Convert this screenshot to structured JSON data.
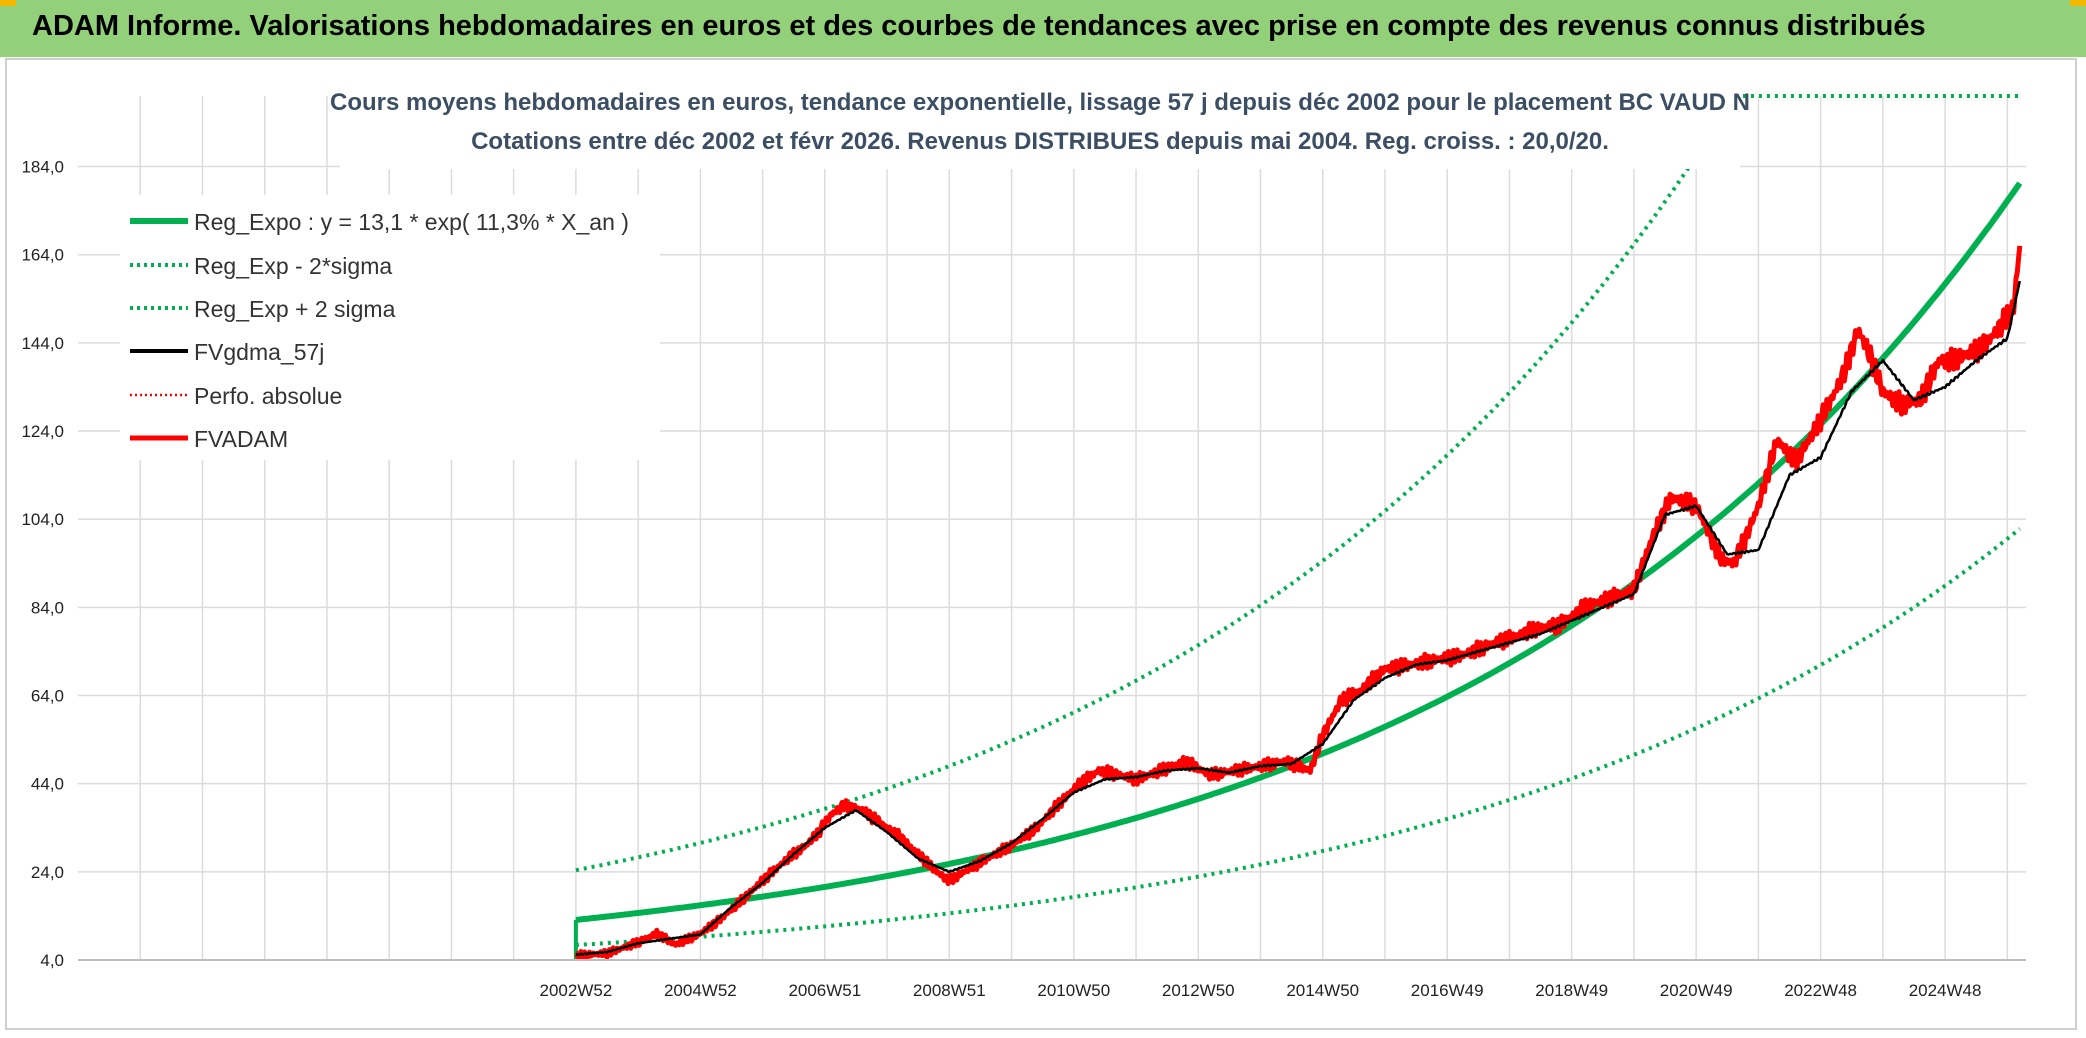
{
  "page": {
    "banner_title": "ADAM Informe. Valorisations hebdomadaires en euros et des courbes de tendances avec prise en compte des revenus connus distribués"
  },
  "colors": {
    "banner_bg": "#92d07a",
    "trend_green": "#00b050",
    "fv_black": "#000000",
    "fv_red": "#ff0000",
    "title_text": "#3b4e63",
    "grid": "#dcdcdc"
  },
  "chart_data": {
    "type": "line",
    "title": [
      "Cours moyens hebdomadaires en euros, tendance exponentielle, lissage 57 j depuis déc 2002 pour le placement BC VAUD N",
      "Cotations entre déc 2002 et févr 2026. Revenus DISTRIBUES depuis mai 2004. Reg. croiss. : 20,0/20."
    ],
    "x_unit": "year",
    "xlim": [
      1995.0,
      2026.3
    ],
    "ylim": [
      4.0,
      200.0
    ],
    "y_ticks": [
      4,
      24,
      44,
      64,
      84,
      104,
      124,
      144,
      164,
      184
    ],
    "y_tick_labels": [
      "4,0",
      "24,0",
      "44,0",
      "64,0",
      "84,0",
      "104,0",
      "124,0",
      "144,0",
      "164,0",
      "184,0"
    ],
    "x_ticks": [
      {
        "x": 2003.0,
        "label": "2002W52"
      },
      {
        "x": 2005.0,
        "label": "2004W52"
      },
      {
        "x": 2007.0,
        "label": "2006W51"
      },
      {
        "x": 2009.0,
        "label": "2008W51"
      },
      {
        "x": 2011.0,
        "label": "2010W50"
      },
      {
        "x": 2013.0,
        "label": "2012W50"
      },
      {
        "x": 2015.0,
        "label": "2014W50"
      },
      {
        "x": 2017.0,
        "label": "2016W49"
      },
      {
        "x": 2019.0,
        "label": "2018W49"
      },
      {
        "x": 2021.0,
        "label": "2020W49"
      },
      {
        "x": 2023.0,
        "label": "2022W48"
      },
      {
        "x": 2025.0,
        "label": "2024W48"
      }
    ],
    "legend": [
      {
        "name": "Reg_Expo : y = 13,1 * exp( 11,3% *  X_an )",
        "style": "solid-thick",
        "color": "#00b050"
      },
      {
        "name": "Reg_Exp - 2*sigma",
        "style": "dotted",
        "color": "#00b050"
      },
      {
        "name": "Reg_Exp + 2 sigma",
        "style": "dotted",
        "color": "#00b050"
      },
      {
        "name": "FVgdma_57j",
        "style": "solid",
        "color": "#000000"
      },
      {
        "name": "Perfo. absolue",
        "style": "dotted",
        "color": "#ff0000"
      },
      {
        "name": "FVADAM",
        "style": "solid-thick",
        "color": "#ff0000"
      }
    ],
    "regression": {
      "a": 13.1,
      "rate": 0.113,
      "start_x": 2003.0,
      "end_x": 2026.2,
      "upper_factor": 1.86,
      "lower_factor": 0.565,
      "upper_plateau": 200.0
    },
    "series": [
      {
        "name": "FVADAM",
        "x": [
          2003.0,
          2003.5,
          2004.0,
          2004.3,
          2004.6,
          2005.0,
          2005.3,
          2005.7,
          2006.0,
          2006.4,
          2006.7,
          2006.9,
          2007.1,
          2007.3,
          2007.6,
          2007.9,
          2008.2,
          2008.5,
          2008.8,
          2009.0,
          2009.3,
          2009.6,
          2010.0,
          2010.4,
          2010.8,
          2011.1,
          2011.4,
          2011.7,
          2012.0,
          2012.4,
          2012.8,
          2013.2,
          2013.6,
          2014.0,
          2014.4,
          2014.8,
          2015.0,
          2015.3,
          2015.6,
          2016.0,
          2016.4,
          2016.8,
          2017.2,
          2017.6,
          2018.0,
          2018.4,
          2018.8,
          2019.2,
          2019.6,
          2020.0,
          2020.3,
          2020.6,
          2020.8,
          2021.0,
          2021.2,
          2021.4,
          2021.6,
          2021.8,
          2022.0,
          2022.3,
          2022.6,
          2022.9,
          2023.2,
          2023.4,
          2023.6,
          2023.8,
          2024.0,
          2024.3,
          2024.6,
          2024.9,
          2025.1,
          2025.3,
          2025.6,
          2025.9,
          2026.1,
          2026.2
        ],
        "y": [
          5.0,
          5.5,
          8.0,
          10.0,
          7.5,
          10.0,
          13.0,
          18.0,
          22.0,
          27.0,
          30.0,
          33.0,
          37.0,
          39.0,
          38.0,
          35.0,
          32.0,
          28.0,
          24.0,
          22.0,
          24.5,
          27.0,
          30.0,
          34.0,
          40.0,
          44.0,
          47.0,
          46.0,
          45.0,
          47.0,
          49.0,
          46.0,
          47.0,
          48.0,
          49.0,
          47.0,
          55.0,
          63.0,
          65.0,
          70.0,
          71.0,
          72.0,
          73.0,
          75.0,
          77.0,
          79.0,
          80.0,
          84.0,
          86.0,
          88.0,
          100.0,
          109.0,
          108.0,
          107.0,
          101.0,
          95.0,
          94.0,
          100.0,
          107.0,
          122.0,
          117.0,
          124.0,
          132.0,
          138.0,
          147.0,
          141.0,
          133.0,
          130.0,
          131.0,
          140.0,
          140.0,
          141.0,
          143.0,
          148.0,
          152.0,
          166.0
        ]
      },
      {
        "name": "FVgdma_57j",
        "x": [
          2003.0,
          2003.5,
          2004.0,
          2004.5,
          2005.0,
          2005.5,
          2006.0,
          2006.5,
          2007.0,
          2007.5,
          2008.0,
          2008.5,
          2009.0,
          2009.5,
          2010.0,
          2010.5,
          2011.0,
          2011.5,
          2012.0,
          2012.5,
          2013.0,
          2013.5,
          2014.0,
          2014.5,
          2015.0,
          2015.5,
          2016.0,
          2016.5,
          2017.0,
          2017.5,
          2018.0,
          2018.5,
          2019.0,
          2019.5,
          2020.0,
          2020.5,
          2021.0,
          2021.5,
          2022.0,
          2022.5,
          2023.0,
          2023.5,
          2024.0,
          2024.5,
          2025.0,
          2025.5,
          2026.0,
          2026.2
        ],
        "y": [
          5.2,
          5.8,
          7.8,
          8.8,
          9.8,
          16.0,
          21.5,
          28.0,
          34.0,
          38.0,
          33.0,
          27.0,
          24.0,
          26.5,
          30.5,
          36.0,
          42.0,
          45.0,
          45.5,
          47.0,
          47.5,
          46.5,
          48.0,
          48.5,
          53.0,
          63.0,
          68.0,
          71.0,
          72.0,
          74.0,
          76.0,
          78.0,
          81.0,
          84.0,
          87.0,
          105.0,
          107.0,
          96.0,
          97.0,
          114.0,
          118.0,
          133.0,
          140.0,
          131.0,
          134.0,
          140.0,
          145.0,
          158.0
        ]
      }
    ]
  }
}
